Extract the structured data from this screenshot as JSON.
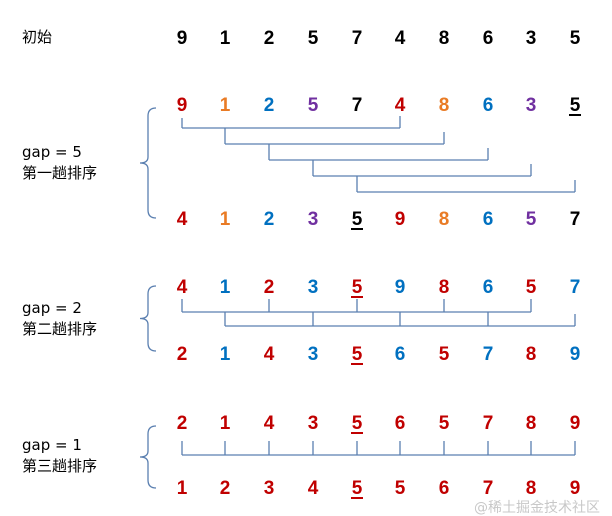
{
  "palette": {
    "red": "#c00000",
    "orange": "#e97b25",
    "blue": "#0070c0",
    "purple": "#7030a0",
    "black": "#000000",
    "line": "#5a7fb0"
  },
  "initial": {
    "label": "初始",
    "values": [
      9,
      1,
      2,
      5,
      7,
      4,
      8,
      6,
      3,
      5
    ],
    "colors": [
      "black",
      "black",
      "black",
      "black",
      "black",
      "black",
      "black",
      "black",
      "black",
      "black"
    ],
    "underline": -1
  },
  "passes": [
    {
      "gap_label": "gap = 5",
      "pass_label": "第一趟排序",
      "gap": 5,
      "before": {
        "values": [
          9,
          1,
          2,
          5,
          7,
          4,
          8,
          6,
          3,
          5
        ],
        "colors": [
          "red",
          "orange",
          "blue",
          "purple",
          "black",
          "red",
          "orange",
          "blue",
          "purple",
          "black"
        ],
        "underline": 9
      },
      "after": {
        "values": [
          4,
          1,
          2,
          3,
          5,
          9,
          8,
          6,
          5,
          7
        ],
        "colors": [
          "red",
          "orange",
          "blue",
          "purple",
          "black",
          "red",
          "orange",
          "blue",
          "purple",
          "black"
        ],
        "underline": 4
      }
    },
    {
      "gap_label": "gap = 2",
      "pass_label": "第二趟排序",
      "gap": 2,
      "before": {
        "values": [
          4,
          1,
          2,
          3,
          5,
          9,
          8,
          6,
          5,
          7
        ],
        "colors": [
          "red",
          "blue",
          "red",
          "blue",
          "red",
          "blue",
          "red",
          "blue",
          "red",
          "blue"
        ],
        "underline": 4
      },
      "after": {
        "values": [
          2,
          1,
          4,
          3,
          5,
          6,
          5,
          7,
          8,
          9
        ],
        "colors": [
          "red",
          "blue",
          "red",
          "blue",
          "red",
          "blue",
          "red",
          "blue",
          "red",
          "blue"
        ],
        "underline": 4
      }
    },
    {
      "gap_label": "gap = 1",
      "pass_label": "第三趟排序",
      "gap": 1,
      "before": {
        "values": [
          2,
          1,
          4,
          3,
          5,
          6,
          5,
          7,
          8,
          9
        ],
        "colors": [
          "red",
          "red",
          "red",
          "red",
          "red",
          "red",
          "red",
          "red",
          "red",
          "red"
        ],
        "underline": 4
      },
      "after": {
        "values": [
          1,
          2,
          3,
          4,
          5,
          5,
          6,
          7,
          8,
          9
        ],
        "colors": [
          "red",
          "red",
          "red",
          "red",
          "red",
          "red",
          "red",
          "red",
          "red",
          "red"
        ],
        "underline": 4
      }
    }
  ],
  "watermark": "@稀土掘金技术社区"
}
